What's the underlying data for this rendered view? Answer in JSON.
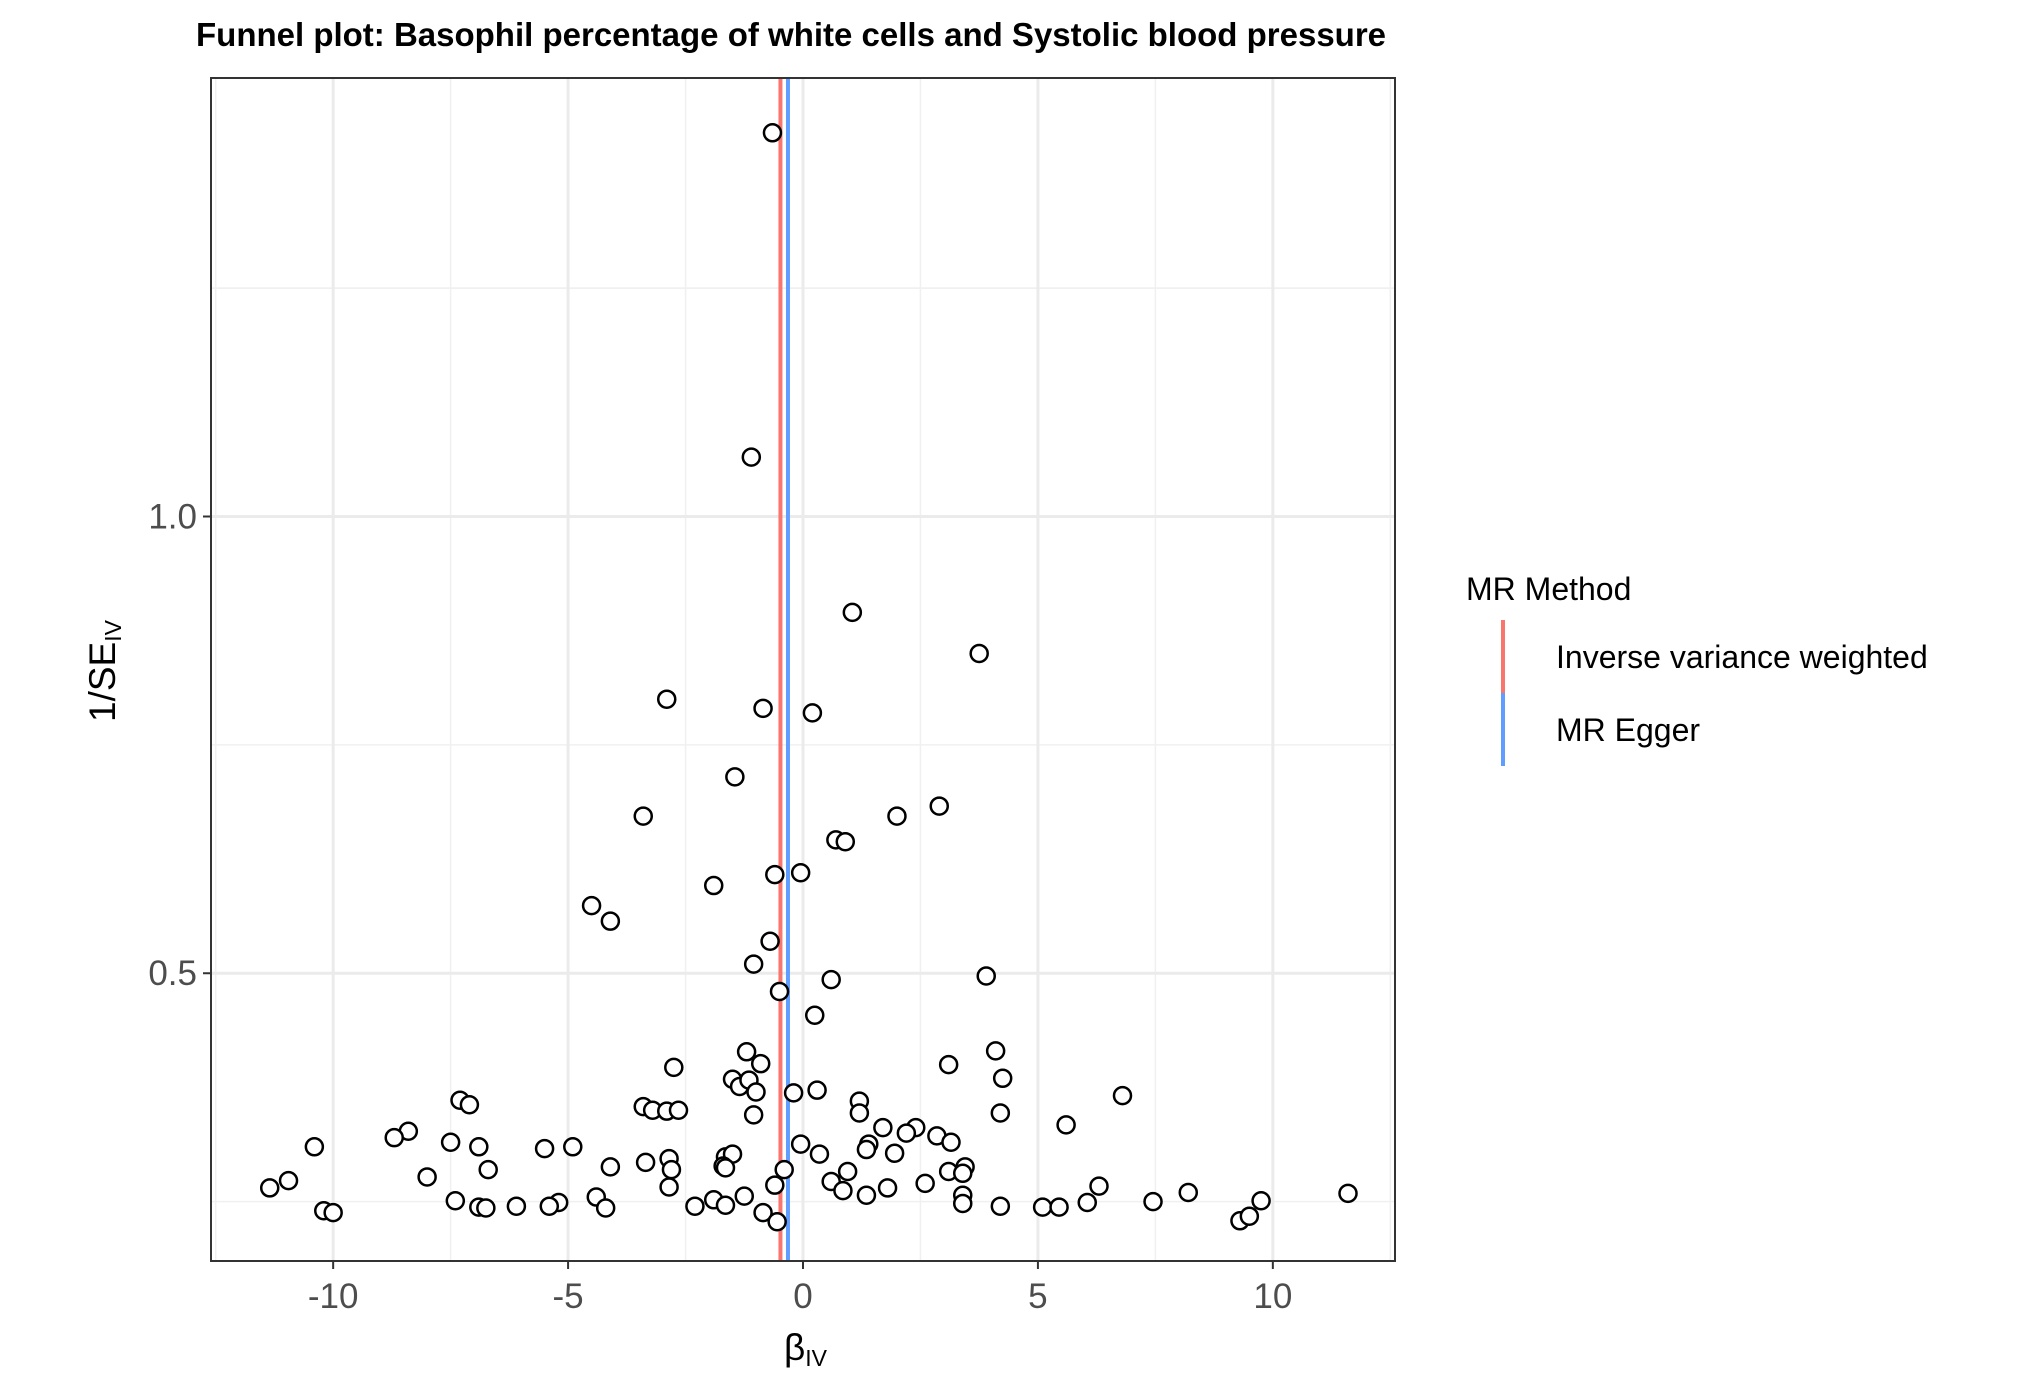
{
  "chart_data": {
    "type": "scatter",
    "title": "Funnel plot: Basophil percentage of white cells and Systolic blood pressure",
    "xlabel": {
      "main": "β",
      "sub": "IV"
    },
    "ylabel": {
      "main": "1/SE",
      "sub": "IV"
    },
    "xlim": [
      -12.6,
      12.6
    ],
    "ylim": [
      0.185,
      1.48
    ],
    "x_ticks": [
      -10,
      -5,
      0,
      5,
      10
    ],
    "x_tick_labels": [
      "-10",
      "-5",
      "0",
      "5",
      "10"
    ],
    "y_ticks": [
      0.5,
      1.0
    ],
    "y_tick_labels": [
      "0.5",
      "1.0"
    ],
    "grid": true,
    "legend": {
      "title": "MR Method",
      "position": "right",
      "entries": [
        {
          "label": "Inverse variance weighted",
          "color": "#F8766D"
        },
        {
          "label": "MR Egger",
          "color": "#619CFF"
        }
      ]
    },
    "vlines": [
      {
        "method": "Inverse variance weighted",
        "x": -0.48,
        "color": "#F8766D"
      },
      {
        "method": "MR Egger",
        "x": -0.32,
        "color": "#619CFF"
      }
    ],
    "points": [
      [
        -0.65,
        1.42
      ],
      [
        -1.1,
        1.065
      ],
      [
        1.05,
        0.895
      ],
      [
        3.75,
        0.85
      ],
      [
        -2.9,
        0.8
      ],
      [
        -0.85,
        0.79
      ],
      [
        0.2,
        0.785
      ],
      [
        -1.45,
        0.715
      ],
      [
        2.9,
        0.683
      ],
      [
        -3.4,
        0.672
      ],
      [
        2.0,
        0.672
      ],
      [
        0.7,
        0.646
      ],
      [
        0.9,
        0.644
      ],
      [
        -0.6,
        0.608
      ],
      [
        -0.05,
        0.61
      ],
      [
        -1.9,
        0.596
      ],
      [
        -4.5,
        0.574
      ],
      [
        -4.1,
        0.557
      ],
      [
        -0.7,
        0.535
      ],
      [
        -1.05,
        0.51
      ],
      [
        0.6,
        0.493
      ],
      [
        3.9,
        0.497
      ],
      [
        -0.5,
        0.48
      ],
      [
        0.25,
        0.454
      ],
      [
        -1.2,
        0.414
      ],
      [
        4.1,
        0.415
      ],
      [
        -0.9,
        0.401
      ],
      [
        3.1,
        0.4
      ],
      [
        -2.75,
        0.397
      ],
      [
        4.25,
        0.385
      ],
      [
        -1.5,
        0.384
      ],
      [
        -1.35,
        0.376
      ],
      [
        -1.15,
        0.383
      ],
      [
        -1.0,
        0.37
      ],
      [
        0.3,
        0.372
      ],
      [
        -0.2,
        0.369
      ],
      [
        1.2,
        0.36
      ],
      [
        6.8,
        0.366
      ],
      [
        -7.3,
        0.361
      ],
      [
        -7.1,
        0.356
      ],
      [
        -3.4,
        0.354
      ],
      [
        -3.2,
        0.35
      ],
      [
        -2.9,
        0.349
      ],
      [
        -2.65,
        0.35
      ],
      [
        1.2,
        0.347
      ],
      [
        -1.05,
        0.345
      ],
      [
        4.2,
        0.347
      ],
      [
        5.6,
        0.334
      ],
      [
        1.7,
        0.331
      ],
      [
        2.4,
        0.331
      ],
      [
        2.2,
        0.325
      ],
      [
        -8.4,
        0.327
      ],
      [
        -8.7,
        0.32
      ],
      [
        -7.5,
        0.315
      ],
      [
        2.85,
        0.322
      ],
      [
        3.15,
        0.315
      ],
      [
        -10.4,
        0.31
      ],
      [
        -6.9,
        0.31
      ],
      [
        -5.5,
        0.308
      ],
      [
        -4.9,
        0.31
      ],
      [
        -0.05,
        0.313
      ],
      [
        1.4,
        0.313
      ],
      [
        1.35,
        0.307
      ],
      [
        0.35,
        0.302
      ],
      [
        1.95,
        0.303
      ],
      [
        -1.65,
        0.299
      ],
      [
        -1.5,
        0.302
      ],
      [
        -2.85,
        0.297
      ],
      [
        -3.35,
        0.293
      ],
      [
        -4.1,
        0.288
      ],
      [
        -6.7,
        0.285
      ],
      [
        -1.7,
        0.289
      ],
      [
        -1.65,
        0.287
      ],
      [
        -2.8,
        0.285
      ],
      [
        -0.4,
        0.285
      ],
      [
        3.45,
        0.288
      ],
      [
        0.95,
        0.283
      ],
      [
        3.1,
        0.283
      ],
      [
        3.4,
        0.281
      ],
      [
        -8.0,
        0.277
      ],
      [
        -10.95,
        0.273
      ],
      [
        -11.35,
        0.265
      ],
      [
        0.6,
        0.272
      ],
      [
        2.6,
        0.27
      ],
      [
        -0.6,
        0.268
      ],
      [
        -2.85,
        0.266
      ],
      [
        0.85,
        0.262
      ],
      [
        1.8,
        0.265
      ],
      [
        6.3,
        0.267
      ],
      [
        1.35,
        0.257
      ],
      [
        3.4,
        0.257
      ],
      [
        8.2,
        0.26
      ],
      [
        11.6,
        0.259
      ],
      [
        -1.25,
        0.256
      ],
      [
        -4.4,
        0.255
      ],
      [
        -7.4,
        0.251
      ],
      [
        -1.9,
        0.252
      ],
      [
        -5.2,
        0.249
      ],
      [
        -4.2,
        0.243
      ],
      [
        -5.4,
        0.245
      ],
      [
        -6.1,
        0.245
      ],
      [
        -6.9,
        0.244
      ],
      [
        -6.75,
        0.243
      ],
      [
        -2.3,
        0.245
      ],
      [
        -1.65,
        0.246
      ],
      [
        3.4,
        0.248
      ],
      [
        4.2,
        0.245
      ],
      [
        5.1,
        0.244
      ],
      [
        5.45,
        0.244
      ],
      [
        6.05,
        0.249
      ],
      [
        7.45,
        0.25
      ],
      [
        9.75,
        0.251
      ],
      [
        -10.2,
        0.24
      ],
      [
        -10.0,
        0.238
      ],
      [
        -0.85,
        0.238
      ],
      [
        -0.55,
        0.228
      ],
      [
        9.3,
        0.229
      ],
      [
        9.5,
        0.234
      ]
    ]
  }
}
